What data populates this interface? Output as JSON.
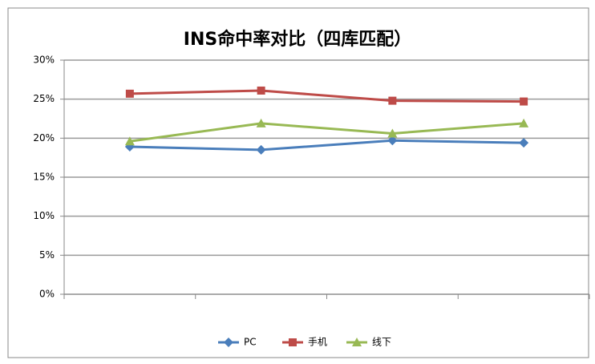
{
  "chart_data": {
    "type": "line",
    "title": "INS命中率对比（四库匹配）",
    "categories": [
      null,
      null,
      null,
      null
    ],
    "series": [
      {
        "name": "PC",
        "color": "#4a7ebb",
        "marker": "diamond",
        "values": [
          18.9,
          18.5,
          19.7,
          19.4
        ]
      },
      {
        "name": "手机",
        "color": "#be4b48",
        "marker": "square",
        "values": [
          25.7,
          26.1,
          24.8,
          24.7
        ]
      },
      {
        "name": "线下",
        "color": "#98b954",
        "marker": "triangle",
        "values": [
          19.6,
          21.9,
          20.6,
          21.9
        ]
      }
    ],
    "ylim": [
      0,
      30
    ],
    "yticks": [
      {
        "value": 0,
        "label": "0%"
      },
      {
        "value": 5,
        "label": "5%"
      },
      {
        "value": 10,
        "label": "10%"
      },
      {
        "value": 15,
        "label": "15%"
      },
      {
        "value": 20,
        "label": "20%"
      },
      {
        "value": 25,
        "label": "25%"
      },
      {
        "value": 30,
        "label": "30%"
      }
    ],
    "grid": true,
    "legend": "bottom"
  }
}
